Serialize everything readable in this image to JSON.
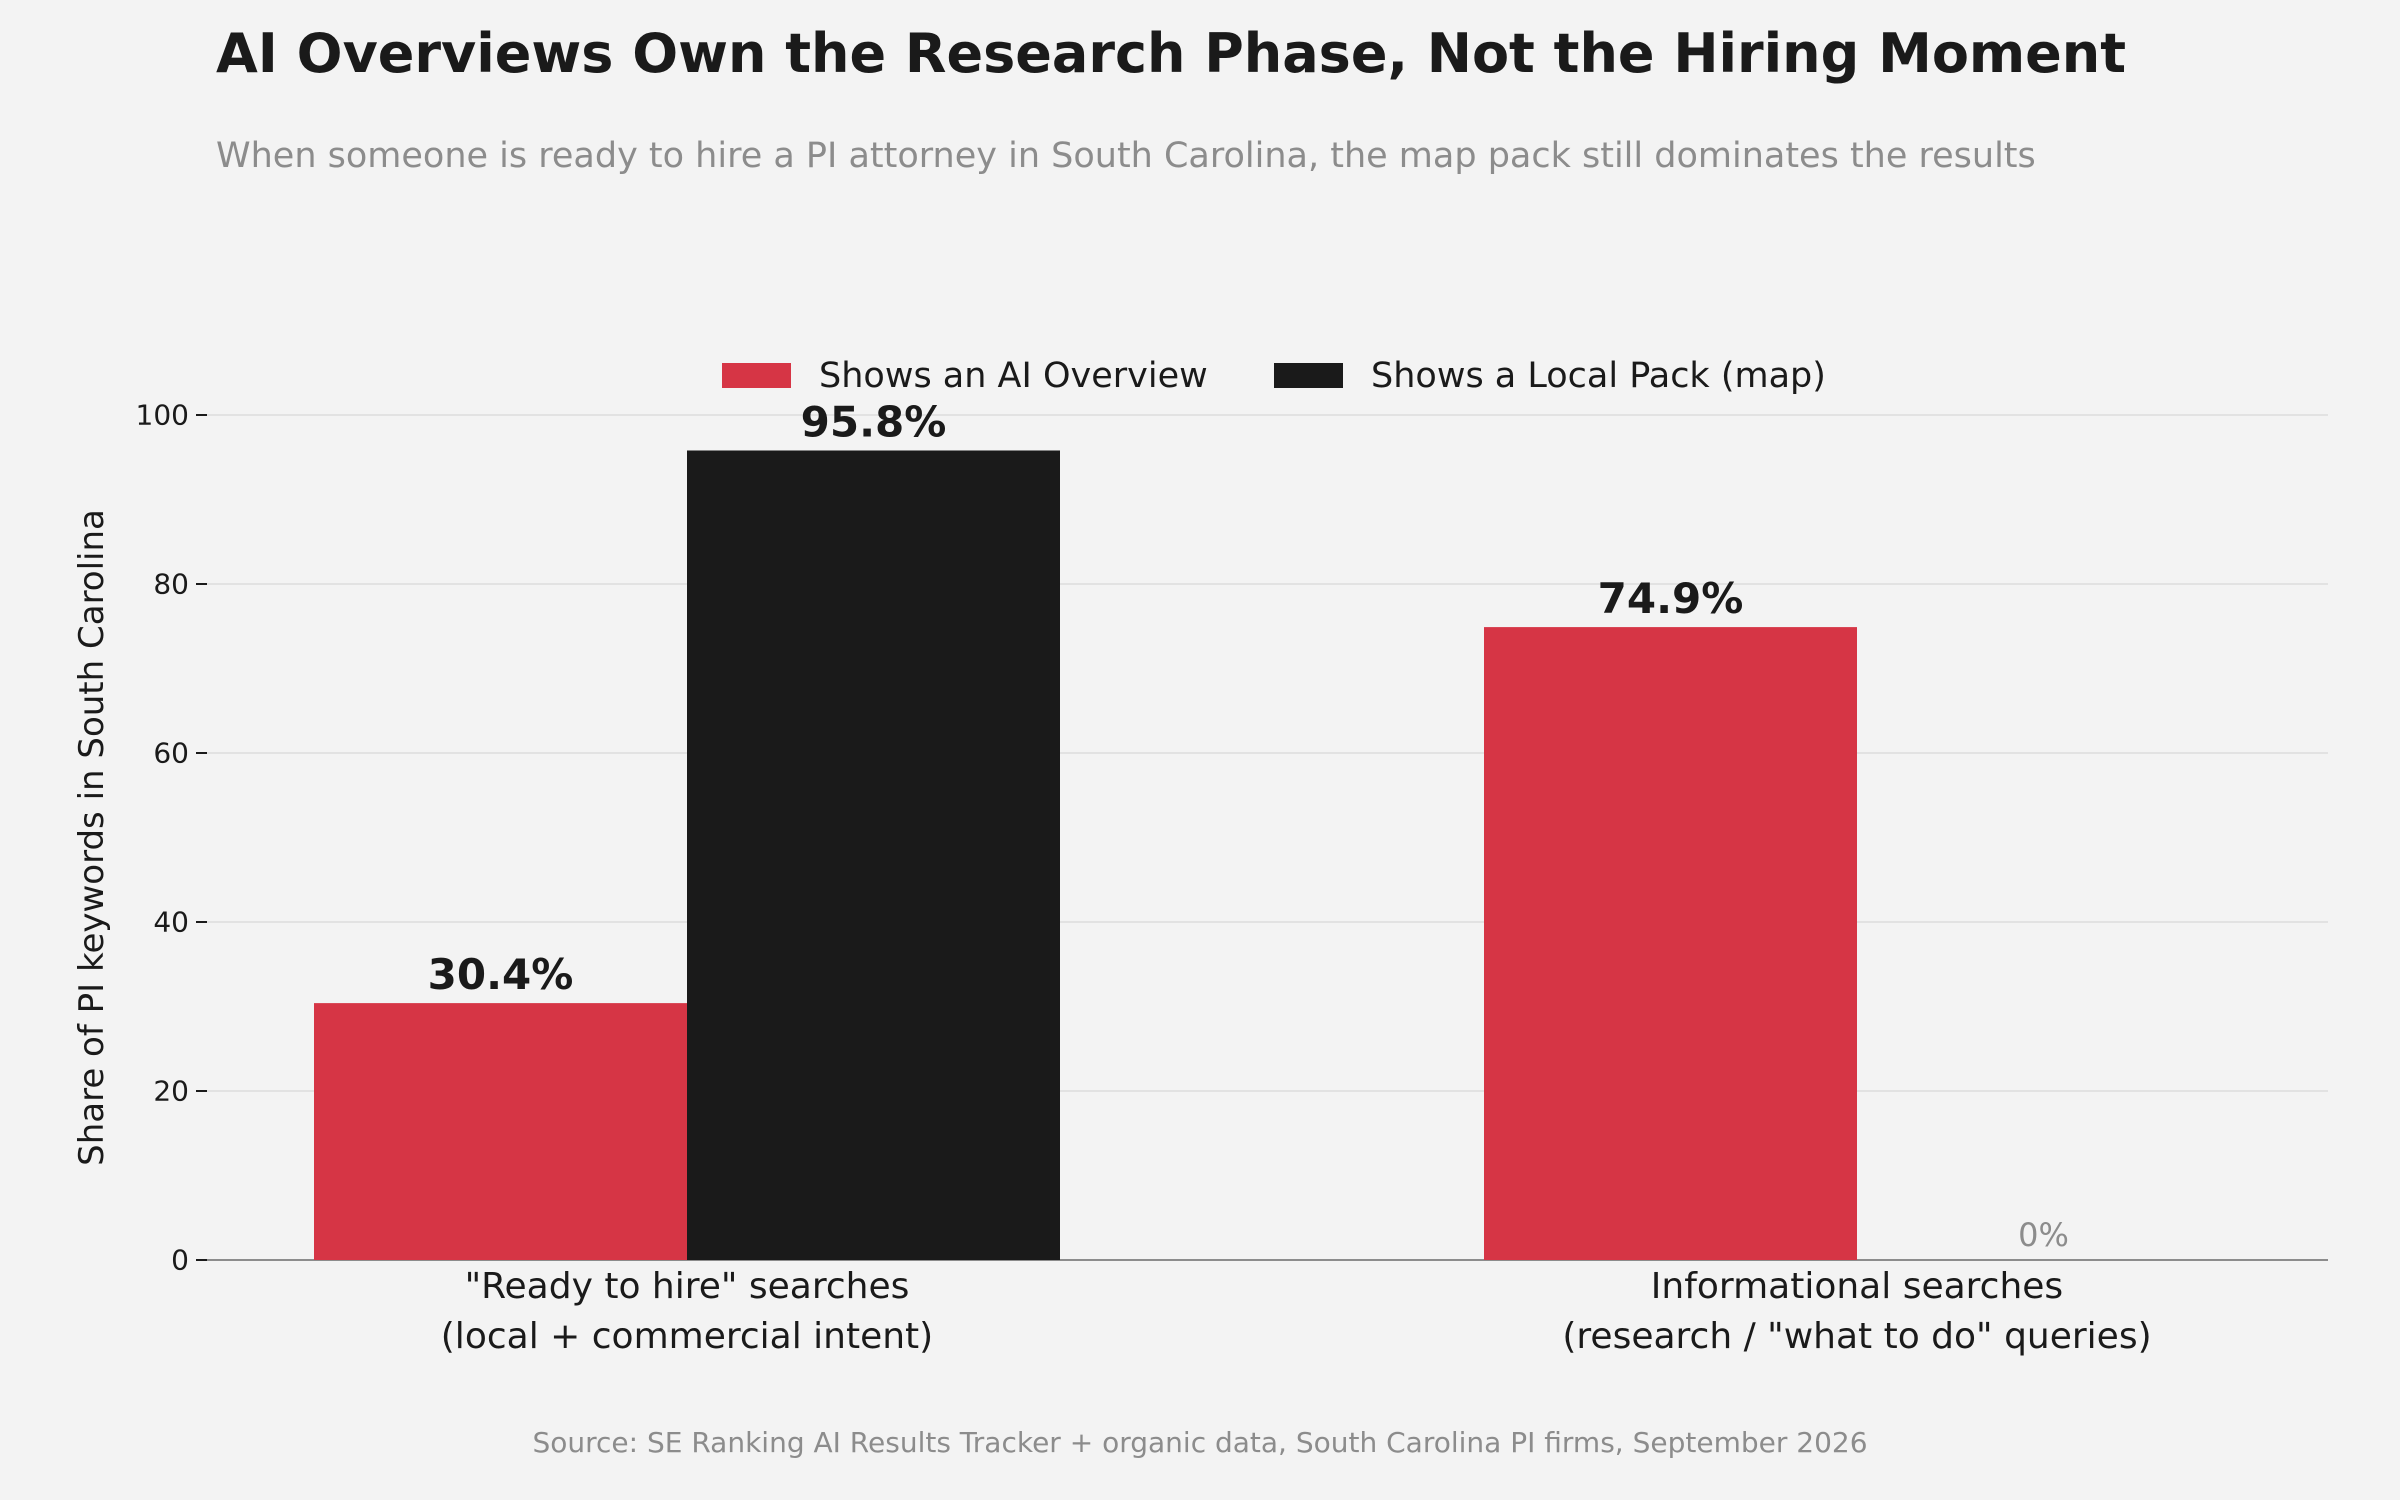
{
  "chart_data": {
    "type": "bar",
    "title": "AI Overviews Own the Research Phase, Not the Hiring Moment",
    "subtitle": "When someone is ready to hire a PI attorney in South Carolina, the map pack still dominates the results",
    "source": "Source: SE Ranking AI Results Tracker + organic data, South Carolina PI firms, September 2026",
    "ylabel": "Share of PI keywords in South Carolina",
    "xlabel": "",
    "ylim": [
      0,
      100
    ],
    "yticks": [
      0,
      20,
      40,
      60,
      80,
      100
    ],
    "grid": true,
    "legend_position": "top-center",
    "categories": [
      [
        "\"Ready to hire\" searches",
        "(local + commercial intent)"
      ],
      [
        "Informational searches",
        "(research / \"what to do\" queries)"
      ]
    ],
    "series": [
      {
        "name": "Shows an AI Overview",
        "color": "#d63545",
        "values": [
          30.4,
          74.9
        ],
        "labels": [
          "30.4%",
          "74.9%"
        ]
      },
      {
        "name": "Shows a Local Pack (map)",
        "color": "#1a1a1a",
        "values": [
          95.8,
          0
        ],
        "labels": [
          "95.8%",
          "0%"
        ]
      }
    ]
  }
}
